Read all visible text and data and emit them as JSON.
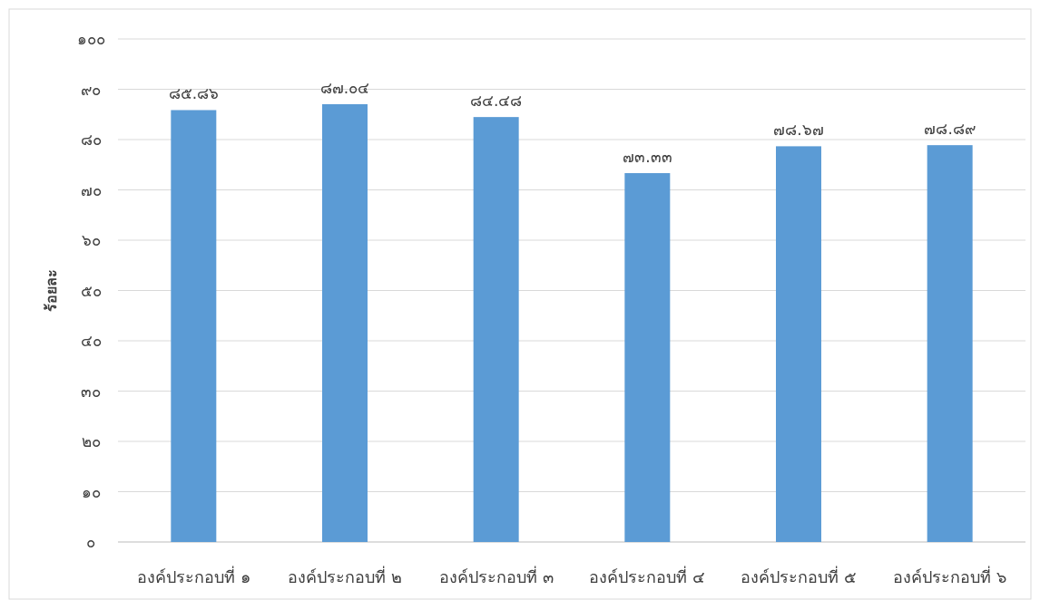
{
  "chart_data": {
    "type": "bar",
    "ylabel": "ร้อยละ",
    "categories": [
      "องค์ประกอบที่ ๑",
      "องค์ประกอบที่ ๒",
      "องค์ประกอบที่ ๓",
      "องค์ประกอบที่ ๔",
      "องค์ประกอบที่ ๕",
      "องค์ประกอบที่ ๖"
    ],
    "values": [
      85.86,
      87.04,
      84.48,
      73.33,
      78.67,
      78.89
    ],
    "value_labels": [
      "๘๕.๘๖",
      "๘๗.๐๔",
      "๘๔.๔๘",
      "๗๓.๓๓",
      "๗๘.๖๗",
      "๗๘.๘๙"
    ],
    "color": "#5b9bd5",
    "ylim": [
      0,
      100
    ],
    "yticks": [
      {
        "value": 0,
        "label": "๐"
      },
      {
        "value": 10,
        "label": "๑๐"
      },
      {
        "value": 20,
        "label": "๒๐"
      },
      {
        "value": 30,
        "label": "๓๐"
      },
      {
        "value": 40,
        "label": "๔๐"
      },
      {
        "value": 50,
        "label": "๕๐"
      },
      {
        "value": 60,
        "label": "๖๐"
      },
      {
        "value": 70,
        "label": "๗๐"
      },
      {
        "value": 80,
        "label": "๘๐"
      },
      {
        "value": 90,
        "label": "๙๐"
      },
      {
        "value": 100,
        "label": "๑๐๐"
      }
    ],
    "grid": "y"
  }
}
